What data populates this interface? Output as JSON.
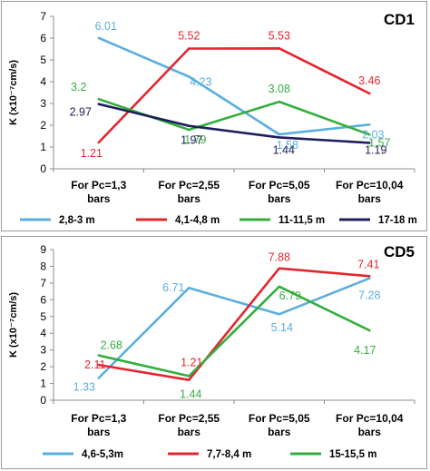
{
  "chart_data": [
    {
      "type": "line",
      "title": "CD1",
      "ylabel": "K (x10⁻⁷cm/s)",
      "xlabel": "",
      "categories": [
        "For Pc=1,3 bars",
        "For Pc=2,55 bars",
        "For Pc=5,05 bars",
        "For Pc=10,04 bars"
      ],
      "ylim": [
        0,
        7
      ],
      "yticks": [
        "0",
        "1",
        "2",
        "3",
        "4",
        "5",
        "6",
        "7"
      ],
      "grid": false,
      "legend_position": "bottom",
      "series": [
        {
          "name": "2,8-3 m",
          "color": "#5aaee0",
          "values": [
            6.01,
            4.23,
            1.58,
            2.03
          ],
          "labels": [
            "6.01",
            "4.23",
            "1.58",
            "2.03"
          ]
        },
        {
          "name": "4,1-4,8 m",
          "color": "#e3262e",
          "values": [
            1.21,
            5.52,
            5.53,
            3.46
          ],
          "labels": [
            "1.21",
            "5.52",
            "5.53",
            "3.46"
          ]
        },
        {
          "name": "11-11,5 m",
          "color": "#34ae3e",
          "values": [
            3.2,
            1.79,
            3.08,
            1.57
          ],
          "labels": [
            "3.2",
            "1.79",
            "3.08",
            "1.57"
          ]
        },
        {
          "name": "17-18 m",
          "color": "#1f1e5c",
          "values": [
            2.97,
            1.97,
            1.44,
            1.19
          ],
          "labels": [
            "2.97",
            "1.97",
            "1.44",
            "1.19"
          ]
        }
      ]
    },
    {
      "type": "line",
      "title": "CD5",
      "ylabel": "K (x10⁻⁷cm/s)",
      "xlabel": "",
      "categories": [
        "For Pc=1,3 bars",
        "For Pc=2,55 bars",
        "For Pc=5,05 bars",
        "For Pc=10,04 bars"
      ],
      "ylim": [
        0,
        9
      ],
      "yticks": [
        "0",
        "1",
        "2",
        "3",
        "4",
        "5",
        "6",
        "7",
        "8",
        "9"
      ],
      "grid": false,
      "legend_position": "bottom",
      "series": [
        {
          "name": "4,6-5,3m",
          "color": "#5aaee0",
          "values": [
            1.33,
            6.71,
            5.14,
            7.28
          ],
          "labels": [
            "1.33",
            "6.71",
            "5.14",
            "7.28"
          ]
        },
        {
          "name": "7,7-8,4 m",
          "color": "#e3262e",
          "values": [
            2.11,
            1.21,
            7.88,
            7.41
          ],
          "labels": [
            "2.11",
            "1.21",
            "7.88",
            "7.41"
          ]
        },
        {
          "name": "15-15,5 m",
          "color": "#34ae3e",
          "values": [
            2.68,
            1.44,
            6.79,
            4.17
          ],
          "labels": [
            "2.68",
            "1.44",
            "6.79",
            "4.17"
          ]
        }
      ]
    }
  ]
}
